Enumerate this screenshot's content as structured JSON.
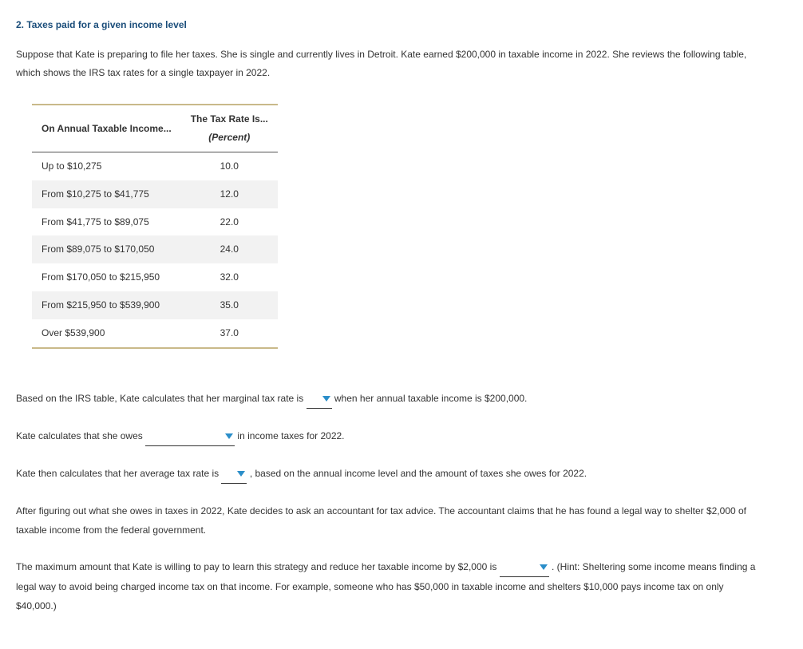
{
  "title": "2. Taxes paid for a given income level",
  "intro": "Suppose that Kate is preparing to file her taxes. She is single and currently lives in Detroit. Kate earned $200,000 in taxable income in 2022. She reviews the following table, which shows the IRS tax rates for a single taxpayer in 2022.",
  "table": {
    "col1_header": "On Annual Taxable Income...",
    "col2_header_top": "The Tax Rate Is...",
    "col2_header_sub": "(Percent)",
    "rows": [
      {
        "bracket": "Up to $10,275",
        "rate": "10.0"
      },
      {
        "bracket": "From $10,275 to $41,775",
        "rate": "12.0"
      },
      {
        "bracket": "From $41,775 to $89,075",
        "rate": "22.0"
      },
      {
        "bracket": "From $89,075 to $170,050",
        "rate": "24.0"
      },
      {
        "bracket": "From $170,050 to $215,950",
        "rate": "32.0"
      },
      {
        "bracket": "From $215,950 to $539,900",
        "rate": "35.0"
      },
      {
        "bracket": "Over $539,900",
        "rate": "37.0"
      }
    ]
  },
  "q1": {
    "pre": "Based on the IRS table, Kate calculates that her marginal tax rate is ",
    "post": " when her annual taxable income is $200,000."
  },
  "q2": {
    "pre": "Kate calculates that she owes ",
    "post": " in income taxes for 2022."
  },
  "q3": {
    "pre": "Kate then calculates that her average tax rate is ",
    "post": " , based on the annual income level and the amount of taxes she owes for 2022."
  },
  "q4": "After figuring out what she owes in taxes in 2022, Kate decides to ask an accountant for tax advice. The accountant claims that he has found a legal way to shelter $2,000 of taxable income from the federal government.",
  "q5": {
    "pre": "The maximum amount that Kate is willing to pay to learn this strategy and reduce her taxable income by $2,000 is ",
    "post": " . (Hint: Sheltering some income means finding a legal way to avoid being charged income tax on that income. For example, someone who has $50,000 in taxable income and shelters $10,000 pays income tax on only $40,000.)"
  },
  "colors": {
    "title": "#1a4d7a",
    "table_border": "#c9b98a",
    "row_alt_bg": "#f2f2f2",
    "caret": "#2b8ec9"
  }
}
